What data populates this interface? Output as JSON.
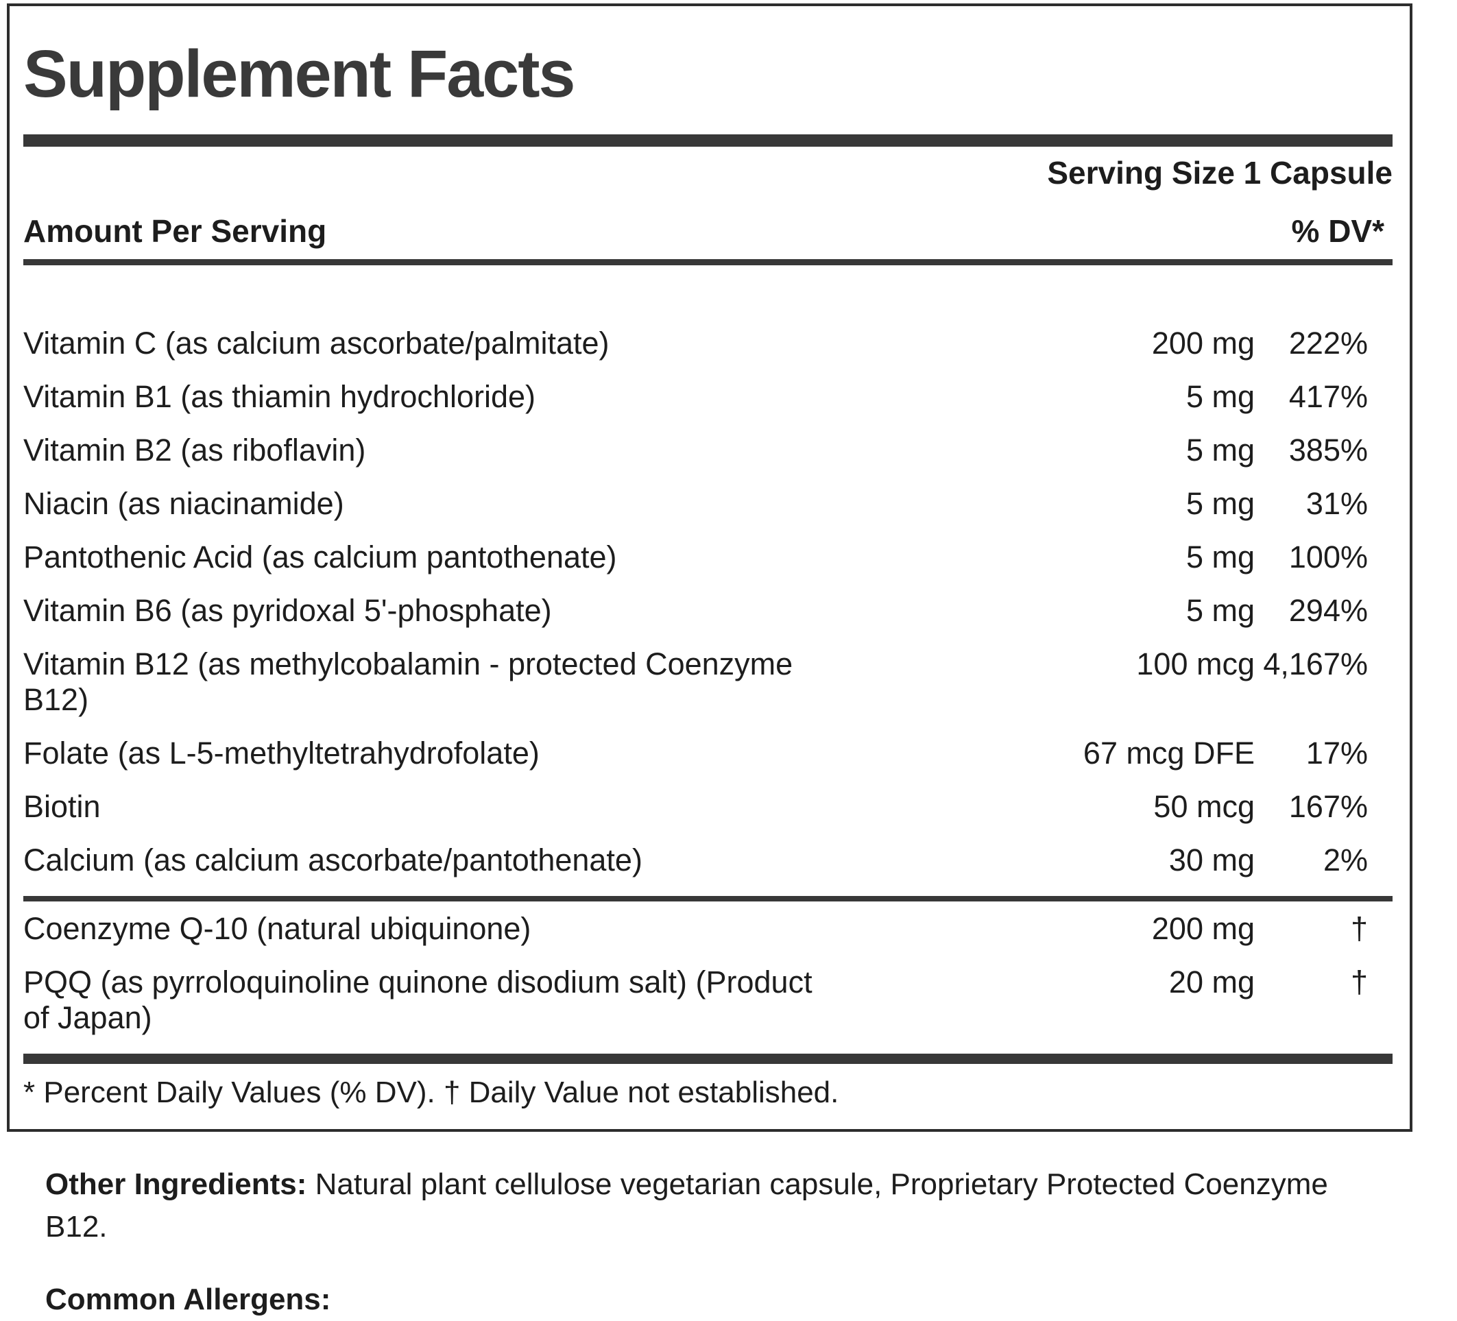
{
  "colors": {
    "text": "#1d1d1d",
    "title": "#3a3a3a",
    "bar": "#383838",
    "border": "#2d2d2d",
    "bg": "#ffffff"
  },
  "panel": {
    "title": "Supplement Facts",
    "serving_size": "Serving Size 1 Capsule",
    "columns": {
      "amount_header": "Amount Per Serving",
      "dv_header": "% DV*"
    },
    "main_rows": [
      {
        "name": "Vitamin C (as calcium ascorbate/palmitate)",
        "amount": "200 mg",
        "dv": "222%"
      },
      {
        "name": "Vitamin B1 (as thiamin hydrochloride)",
        "amount": "5 mg",
        "dv": "417%"
      },
      {
        "name": "Vitamin B2 (as riboflavin)",
        "amount": "5 mg",
        "dv": "385%"
      },
      {
        "name": "Niacin (as niacinamide)",
        "amount": "5 mg",
        "dv": "31%"
      },
      {
        "name": "Pantothenic Acid (as calcium pantothenate)",
        "amount": "5 mg",
        "dv": "100%"
      },
      {
        "name": "Vitamin B6 (as pyridoxal 5'-phosphate)",
        "amount": "5 mg",
        "dv": "294%"
      },
      {
        "name": "Vitamin B12 (as methylcobalamin - protected Coenzyme B12)",
        "amount": "100 mcg",
        "dv": "4,167%"
      },
      {
        "name": "Folate (as L-5-methyltetrahydrofolate)",
        "amount": "67 mcg DFE",
        "dv": "17%"
      },
      {
        "name": "Biotin",
        "amount": "50 mcg",
        "dv": "167%"
      },
      {
        "name": "Calcium (as calcium ascorbate/pantothenate)",
        "amount": "30 mg",
        "dv": "2%"
      }
    ],
    "extra_rows": [
      {
        "name": "Coenzyme Q-10 (natural ubiquinone)",
        "amount": "200 mg",
        "dv": "†"
      },
      {
        "name": "PQQ (as pyrroloquinoline quinone disodium salt) (Product of Japan)",
        "amount": "20 mg",
        "dv": "†"
      }
    ],
    "footnote": "* Percent Daily Values (% DV). † Daily Value not established."
  },
  "below": {
    "other_ingredients_label": "Other Ingredients:",
    "other_ingredients_text": " Natural plant cellulose vegetarian capsule, Proprietary Protected Coenzyme B12.",
    "common_allergens_label": "Common Allergens:"
  }
}
